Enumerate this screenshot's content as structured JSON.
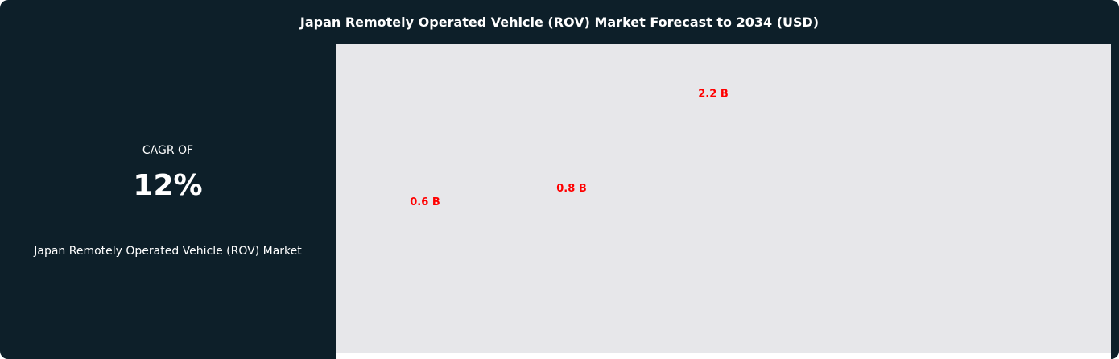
{
  "header": {
    "title": "Japan Remotely Operated Vehicle (ROV) Market Forecast to 2034 (USD)"
  },
  "summary": {
    "cagr_label": "CAGR OF",
    "cagr_value": "12%",
    "market_name": "Japan Remotely Operated Vehicle (ROV) Market"
  },
  "colors": {
    "background": "#0d1f29",
    "plot_background": "#e7e7ea",
    "label": "#ff0000"
  },
  "chart_data": {
    "type": "bar",
    "title": "Japan Remotely Operated Vehicle (ROV) Market Forecast to 2034 (USD)",
    "values": [
      0.6,
      0.8,
      2.2
    ],
    "data_labels": [
      "0.6 B",
      "0.8 B",
      "2.2 B"
    ],
    "unit": "B USD",
    "grid": false,
    "legend": "none"
  }
}
